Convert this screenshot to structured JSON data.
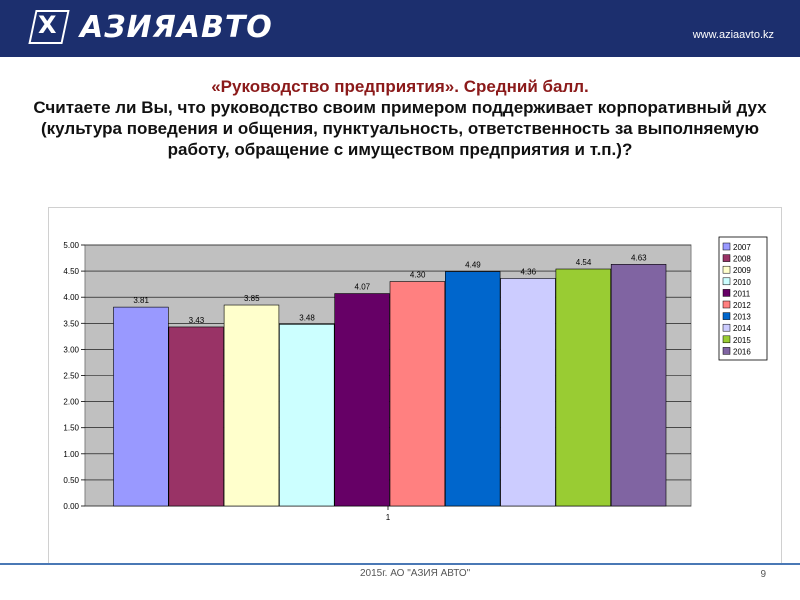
{
  "header": {
    "logo_mark": "X",
    "logo_text": "АЗИЯАВТО",
    "url": "www.aziaavto.kz",
    "bg_color": "#1c2f6e"
  },
  "title": {
    "line1": "«Руководство предприятия». Средний балл.",
    "line2": "Считаете ли Вы, что руководство своим примером поддерживает корпоративный дух (культура поведения и общения, пунктуальность, ответственность за выполняемую работу, обращение с имуществом предприятия и т.п.)?"
  },
  "chart_data": {
    "type": "bar",
    "categories": [
      "1"
    ],
    "series": [
      {
        "name": "2007",
        "values": [
          3.81
        ],
        "color": "#9999ff"
      },
      {
        "name": "2008",
        "values": [
          3.43
        ],
        "color": "#993366"
      },
      {
        "name": "2009",
        "values": [
          3.85
        ],
        "color": "#ffffcc"
      },
      {
        "name": "2010",
        "values": [
          3.48
        ],
        "color": "#ccffff"
      },
      {
        "name": "2011",
        "values": [
          4.07
        ],
        "color": "#660066"
      },
      {
        "name": "2012",
        "values": [
          4.3
        ],
        "color": "#ff8080"
      },
      {
        "name": "2013",
        "values": [
          4.49
        ],
        "color": "#0066cc"
      },
      {
        "name": "2014",
        "values": [
          4.36
        ],
        "color": "#ccccff"
      },
      {
        "name": "2015",
        "values": [
          4.54
        ],
        "color": "#99cc33"
      },
      {
        "name": "2016",
        "values": [
          4.63
        ],
        "color": "#8064a2"
      }
    ],
    "data_labels": [
      "3.81",
      "3.43",
      "3.85",
      "3.48",
      "4.07",
      "4.30",
      "4.49",
      "4.36",
      "4.54",
      "4.63"
    ],
    "ylim": [
      0,
      5
    ],
    "yticks": [
      "0.00",
      "0.50",
      "1.00",
      "1.50",
      "2.00",
      "2.50",
      "3.00",
      "3.50",
      "4.00",
      "4.50",
      "5.00"
    ],
    "grid": true,
    "plot_bg": "#c0c0c0",
    "legend_position": "right"
  },
  "footer": {
    "text": "2015г. АО \"АЗИЯ АВТО\"",
    "page_number": "9"
  }
}
